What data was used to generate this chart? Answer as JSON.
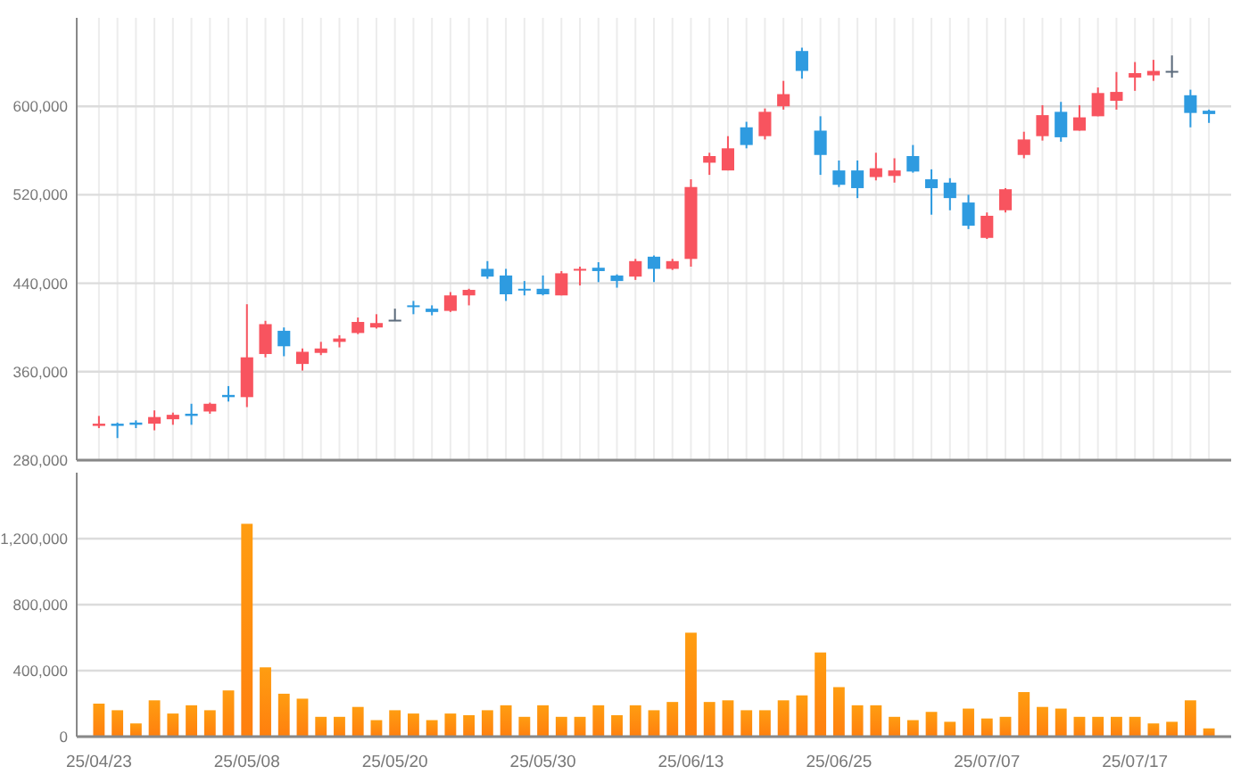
{
  "chart_data": [
    {
      "type": "candlestick",
      "categories": [
        null,
        null,
        null,
        null,
        null,
        null,
        null,
        null,
        null,
        null,
        null,
        null,
        null,
        null,
        null,
        null,
        null,
        null,
        null,
        null,
        null,
        null,
        null,
        null,
        null,
        null,
        null,
        null,
        null,
        null,
        null,
        null,
        null,
        null,
        null,
        null,
        null,
        null,
        null,
        null,
        null,
        null,
        null,
        null,
        null,
        null,
        null,
        null,
        null,
        null,
        null,
        null,
        null,
        null,
        null,
        null,
        null,
        null,
        null,
        null,
        null
      ],
      "ohlc": [
        [
          311000,
          320000,
          309000,
          313000
        ],
        [
          313000,
          314000,
          300000,
          311000
        ],
        [
          314000,
          316000,
          309000,
          312000
        ],
        [
          313000,
          325000,
          307000,
          319000
        ],
        [
          317000,
          323000,
          312000,
          321000
        ],
        [
          322000,
          331000,
          312000,
          320000
        ],
        [
          324000,
          332000,
          322000,
          331000
        ],
        [
          339000,
          347000,
          333000,
          337000
        ],
        [
          337000,
          421000,
          328000,
          373000
        ],
        [
          376000,
          406000,
          373000,
          403000
        ],
        [
          397000,
          400000,
          374000,
          383000
        ],
        [
          367000,
          381000,
          361000,
          378000
        ],
        [
          377000,
          387000,
          375000,
          381000
        ],
        [
          387000,
          393000,
          382000,
          390000
        ],
        [
          395000,
          409000,
          394000,
          405000
        ],
        [
          400000,
          412000,
          399000,
          404000
        ],
        [
          407000,
          417000,
          406000,
          407000
        ],
        [
          420000,
          424000,
          412000,
          419000
        ],
        [
          417000,
          420000,
          411000,
          414000
        ],
        [
          415000,
          432000,
          414000,
          429000
        ],
        [
          429000,
          435000,
          420000,
          434000
        ],
        [
          453000,
          460000,
          444000,
          446000
        ],
        [
          447000,
          453000,
          424000,
          430000
        ],
        [
          435000,
          442000,
          429000,
          434000
        ],
        [
          435000,
          447000,
          429000,
          430000
        ],
        [
          429000,
          451000,
          429000,
          449000
        ],
        [
          452000,
          455000,
          438000,
          453000
        ],
        [
          454000,
          459000,
          441000,
          451000
        ],
        [
          447000,
          448000,
          436000,
          442000
        ],
        [
          446000,
          462000,
          443000,
          460000
        ],
        [
          464000,
          465000,
          441000,
          453000
        ],
        [
          453000,
          462000,
          452000,
          460000
        ],
        [
          462000,
          534000,
          455000,
          527000
        ],
        [
          549000,
          558000,
          538000,
          555000
        ],
        [
          542000,
          573000,
          542000,
          562000
        ],
        [
          581000,
          586000,
          562000,
          565000
        ],
        [
          573000,
          598000,
          570000,
          595000
        ],
        [
          600000,
          623000,
          597000,
          611000
        ],
        [
          650000,
          653000,
          625000,
          632000
        ],
        [
          578000,
          591000,
          538000,
          556000
        ],
        [
          542000,
          551000,
          527000,
          529000
        ],
        [
          542000,
          551000,
          517000,
          526000
        ],
        [
          536000,
          558000,
          533000,
          544000
        ],
        [
          537000,
          553000,
          531000,
          542000
        ],
        [
          555000,
          565000,
          540000,
          541000
        ],
        [
          534000,
          543000,
          502000,
          526000
        ],
        [
          531000,
          535000,
          506000,
          517000
        ],
        [
          513000,
          520000,
          489000,
          492000
        ],
        [
          481000,
          504000,
          480000,
          501000
        ],
        [
          506000,
          526000,
          504000,
          525000
        ],
        [
          556000,
          577000,
          553000,
          570000
        ],
        [
          573000,
          601000,
          569000,
          592000
        ],
        [
          595000,
          604000,
          568000,
          572000
        ],
        [
          578000,
          601000,
          578000,
          590000
        ],
        [
          591000,
          617000,
          591000,
          612000
        ],
        [
          605000,
          631000,
          597000,
          613000
        ],
        [
          626000,
          640000,
          614000,
          630000
        ],
        [
          628000,
          642000,
          623000,
          632000
        ],
        [
          632000,
          646000,
          626000,
          632000
        ],
        [
          610000,
          615000,
          581000,
          594000
        ],
        [
          596000,
          597000,
          585000,
          593000
        ]
      ],
      "colors": [
        "#f8545f",
        "#2e9be0",
        "#2e9be0",
        "#f8545f",
        "#f8545f",
        "#2e9be0",
        "#f8545f",
        "#2e9be0",
        "#f8545f",
        "#f8545f",
        "#2e9be0",
        "#f8545f",
        "#f8545f",
        "#f8545f",
        "#f8545f",
        "#f8545f",
        "#5c6b7c",
        "#2e9be0",
        "#2e9be0",
        "#f8545f",
        "#f8545f",
        "#2e9be0",
        "#2e9be0",
        "#2e9be0",
        "#2e9be0",
        "#f8545f",
        "#f8545f",
        "#2e9be0",
        "#2e9be0",
        "#f8545f",
        "#2e9be0",
        "#f8545f",
        "#f8545f",
        "#f8545f",
        "#f8545f",
        "#2e9be0",
        "#f8545f",
        "#f8545f",
        "#2e9be0",
        "#2e9be0",
        "#2e9be0",
        "#2e9be0",
        "#f8545f",
        "#f8545f",
        "#2e9be0",
        "#2e9be0",
        "#2e9be0",
        "#2e9be0",
        "#f8545f",
        "#f8545f",
        "#f8545f",
        "#f8545f",
        "#2e9be0",
        "#f8545f",
        "#f8545f",
        "#f8545f",
        "#f8545f",
        "#f8545f",
        "#5c6b7c",
        "#2e9be0",
        "#2e9be0"
      ],
      "ylim": [
        280000,
        680000
      ],
      "yticks": [
        {
          "value": 280000,
          "label": "280,000"
        },
        {
          "value": 360000,
          "label": "360,000"
        },
        {
          "value": 440000,
          "label": "440,000"
        },
        {
          "value": 520000,
          "label": "520,000"
        },
        {
          "value": 600000,
          "label": "600,000"
        }
      ],
      "grid": true,
      "tick_labels": "y"
    },
    {
      "type": "bar",
      "categories": [
        "25/04/23",
        null,
        null,
        null,
        null,
        null,
        null,
        null,
        "25/05/08",
        null,
        null,
        null,
        null,
        null,
        null,
        null,
        "25/05/20",
        null,
        null,
        null,
        null,
        null,
        null,
        null,
        "25/05/30",
        null,
        null,
        null,
        null,
        null,
        null,
        null,
        "25/06/13",
        null,
        null,
        null,
        null,
        null,
        null,
        null,
        "25/06/25",
        null,
        null,
        null,
        null,
        null,
        null,
        null,
        "25/07/07",
        null,
        null,
        null,
        null,
        null,
        null,
        null,
        "25/07/17",
        null,
        null,
        null,
        null
      ],
      "values": [
        200000,
        160000,
        80000,
        220000,
        140000,
        190000,
        160000,
        280000,
        1290000,
        420000,
        260000,
        230000,
        120000,
        120000,
        180000,
        100000,
        160000,
        140000,
        100000,
        140000,
        130000,
        160000,
        190000,
        120000,
        190000,
        120000,
        120000,
        190000,
        130000,
        190000,
        160000,
        210000,
        630000,
        210000,
        220000,
        160000,
        160000,
        220000,
        250000,
        510000,
        300000,
        190000,
        190000,
        120000,
        100000,
        150000,
        90000,
        170000,
        110000,
        120000,
        270000,
        180000,
        170000,
        120000,
        120000,
        120000,
        120000,
        80000,
        90000,
        220000,
        50000
      ],
      "color": "#ff7f0e",
      "ylim": [
        0,
        1600000
      ],
      "yticks": [
        0,
        {
          "value": 400000,
          "label": "400,000"
        },
        {
          "value": 800000,
          "label": "800,000"
        },
        {
          "value": 1200000,
          "label": "1,200,000"
        }
      ],
      "grid": "y"
    }
  ]
}
